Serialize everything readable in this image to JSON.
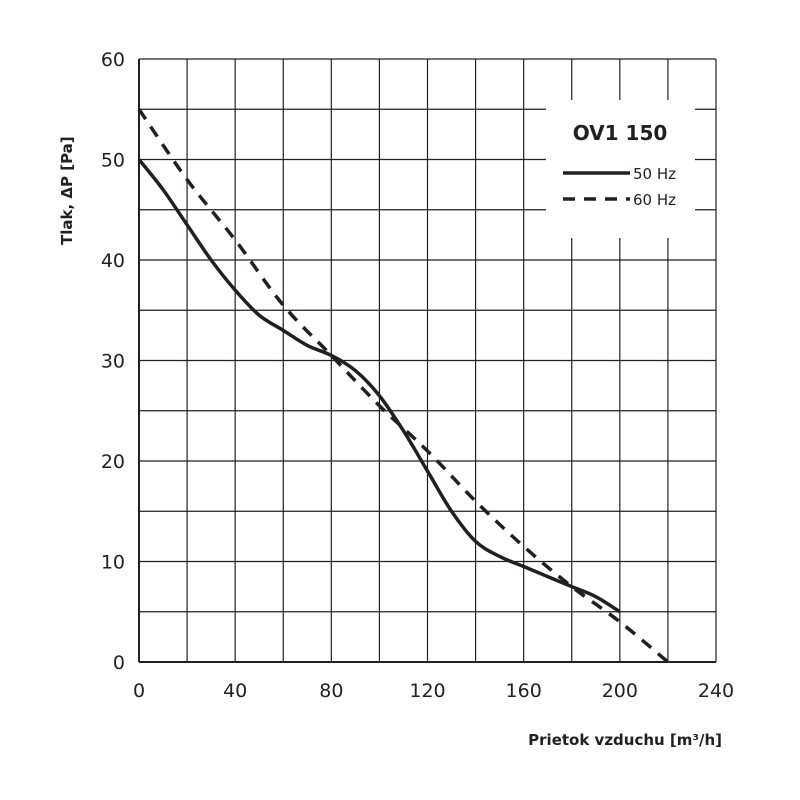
{
  "chart_data": {
    "type": "line",
    "title": "OV1 150",
    "xlabel": "Prietok vzduchu  [m³/h]",
    "ylabel": "Tlak, ΔP [Pa]",
    "xlim": [
      0,
      240
    ],
    "ylim": [
      0,
      60
    ],
    "xticks": [
      0,
      40,
      80,
      120,
      160,
      200,
      240
    ],
    "yticks": [
      0,
      10,
      20,
      30,
      40,
      50,
      60
    ],
    "grid": true,
    "legend_position": "top-right",
    "series": [
      {
        "name": "50 Hz",
        "style": "solid",
        "x": [
          0,
          10,
          20,
          30,
          40,
          50,
          60,
          70,
          80,
          90,
          100,
          110,
          120,
          130,
          140,
          150,
          160,
          170,
          180,
          190,
          200
        ],
        "y": [
          50,
          47,
          43.5,
          40,
          37,
          34.5,
          33,
          31.5,
          30.5,
          29,
          26.5,
          23,
          19,
          15,
          12,
          10.5,
          9.5,
          8.5,
          7.5,
          6.5,
          5
        ]
      },
      {
        "name": "60 Hz",
        "style": "dashed",
        "x": [
          0,
          20,
          40,
          60,
          80,
          100,
          120,
          140,
          160,
          180,
          200,
          220
        ],
        "y": [
          55,
          48,
          42,
          35.5,
          30.5,
          25.5,
          21,
          16,
          11.5,
          7.5,
          4,
          0
        ]
      }
    ],
    "color": "#231f20"
  }
}
